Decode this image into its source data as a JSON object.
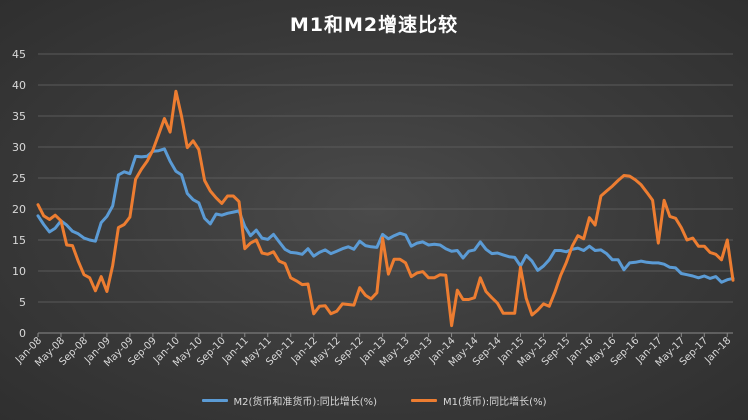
{
  "chart_data": {
    "type": "line",
    "title": "M1和M2增速比较",
    "xlabel": "",
    "ylabel": "",
    "ylim": [
      0,
      45
    ],
    "yticks": [
      "0",
      "5",
      "10",
      "15",
      "20",
      "25",
      "30",
      "35",
      "40",
      "45"
    ],
    "grid": true,
    "legend_position": "bottom",
    "x": [
      "Jan-08",
      "Feb-08",
      "Mar-08",
      "Apr-08",
      "May-08",
      "Jun-08",
      "Jul-08",
      "Aug-08",
      "Sep-08",
      "Oct-08",
      "Nov-08",
      "Dec-08",
      "Jan-09",
      "Feb-09",
      "Mar-09",
      "Apr-09",
      "May-09",
      "Jun-09",
      "Jul-09",
      "Aug-09",
      "Sep-09",
      "Oct-09",
      "Nov-09",
      "Dec-09",
      "Jan-10",
      "Feb-10",
      "Mar-10",
      "Apr-10",
      "May-10",
      "Jun-10",
      "Jul-10",
      "Aug-10",
      "Sep-10",
      "Oct-10",
      "Nov-10",
      "Dec-10",
      "Jan-11",
      "Feb-11",
      "Mar-11",
      "Apr-11",
      "May-11",
      "Jun-11",
      "Jul-11",
      "Aug-11",
      "Sep-11",
      "Oct-11",
      "Nov-11",
      "Dec-11",
      "Jan-12",
      "Feb-12",
      "Mar-12",
      "Apr-12",
      "May-12",
      "Jun-12",
      "Jul-12",
      "Aug-12",
      "Sep-12",
      "Oct-12",
      "Nov-12",
      "Dec-12",
      "Jan-13",
      "Feb-13",
      "Mar-13",
      "Apr-13",
      "May-13",
      "Jun-13",
      "Jul-13",
      "Aug-13",
      "Sep-13",
      "Oct-13",
      "Nov-13",
      "Dec-13",
      "Jan-14",
      "Feb-14",
      "Mar-14",
      "Apr-14",
      "May-14",
      "Jun-14",
      "Jul-14",
      "Aug-14",
      "Sep-14",
      "Oct-14",
      "Nov-14",
      "Dec-14",
      "Jan-15",
      "Feb-15",
      "Mar-15",
      "Apr-15",
      "May-15",
      "Jun-15",
      "Jul-15",
      "Aug-15",
      "Sep-15",
      "Oct-15",
      "Nov-15",
      "Dec-15",
      "Jan-16",
      "Feb-16",
      "Mar-16",
      "Apr-16",
      "May-16",
      "Jun-16",
      "Jul-16",
      "Aug-16",
      "Sep-16",
      "Oct-16",
      "Nov-16",
      "Dec-16",
      "Jan-17",
      "Feb-17",
      "Mar-17",
      "Apr-17",
      "May-17",
      "Jun-17",
      "Jul-17",
      "Aug-17",
      "Sep-17",
      "Oct-17",
      "Nov-17",
      "Dec-17",
      "Jan-18",
      "Feb-18"
    ],
    "tick_labels": [
      "Jan-08",
      "May-08",
      "Sep-08",
      "Jan-09",
      "May-09",
      "Sep-09",
      "Jan-10",
      "May-10",
      "Sep-10",
      "Jan-11",
      "May-11",
      "Sep-11",
      "Jan-12",
      "May-12",
      "Sep-12",
      "Jan-13",
      "May-13",
      "Sep-13",
      "Jan-14",
      "May-14",
      "Sep-14",
      "Jan-15",
      "May-15",
      "Sep-15",
      "Jan-16",
      "May-16",
      "Sep-16",
      "Jan-17",
      "May-17",
      "Sep-17",
      "Jan-18"
    ],
    "series": [
      {
        "name": "M2(货币和准货币):同比增长(%)",
        "color": "#5b9bd5",
        "values": [
          18.9,
          17.5,
          16.3,
          16.9,
          18.1,
          17.4,
          16.4,
          16.0,
          15.3,
          15.0,
          14.8,
          17.8,
          18.8,
          20.5,
          25.5,
          26.0,
          25.7,
          28.5,
          28.4,
          28.5,
          29.3,
          29.4,
          29.7,
          27.7,
          26.1,
          25.5,
          22.5,
          21.5,
          21.0,
          18.5,
          17.6,
          19.2,
          19.0,
          19.3,
          19.5,
          19.7,
          17.2,
          15.7,
          16.6,
          15.3,
          15.1,
          15.9,
          14.7,
          13.5,
          13.0,
          12.9,
          12.7,
          13.6,
          12.4,
          13.0,
          13.4,
          12.8,
          13.2,
          13.6,
          13.9,
          13.5,
          14.8,
          14.1,
          13.9,
          13.8,
          15.9,
          15.2,
          15.7,
          16.1,
          15.8,
          14.0,
          14.5,
          14.7,
          14.2,
          14.3,
          14.2,
          13.6,
          13.2,
          13.3,
          12.1,
          13.2,
          13.4,
          14.7,
          13.5,
          12.8,
          12.9,
          12.6,
          12.3,
          12.2,
          10.8,
          12.5,
          11.6,
          10.1,
          10.8,
          11.8,
          13.3,
          13.3,
          13.1,
          13.5,
          13.7,
          13.3,
          14.0,
          13.3,
          13.4,
          12.8,
          11.8,
          11.8,
          10.2,
          11.3,
          11.4,
          11.6,
          11.4,
          11.3,
          11.3,
          11.1,
          10.6,
          10.5,
          9.6,
          9.4,
          9.2,
          8.9,
          9.2,
          8.8,
          9.1,
          8.2,
          8.6,
          8.8
        ]
      },
      {
        "name": "M1(货币):同比增长(%)",
        "color": "#ed7d31",
        "values": [
          20.7,
          18.9,
          18.3,
          19.0,
          18.1,
          14.2,
          14.1,
          11.6,
          9.4,
          8.9,
          6.8,
          9.1,
          6.7,
          10.9,
          17.0,
          17.5,
          18.7,
          24.8,
          26.4,
          27.7,
          29.5,
          32.0,
          34.6,
          32.4,
          39.0,
          34.9,
          29.9,
          31.0,
          29.6,
          24.6,
          22.9,
          21.8,
          20.9,
          22.1,
          22.1,
          21.2,
          13.6,
          14.5,
          15.0,
          12.9,
          12.7,
          13.1,
          11.6,
          11.2,
          8.9,
          8.4,
          7.8,
          7.9,
          3.1,
          4.3,
          4.4,
          3.1,
          3.5,
          4.7,
          4.6,
          4.5,
          7.3,
          6.1,
          5.5,
          6.5,
          15.3,
          9.5,
          11.9,
          11.9,
          11.3,
          9.1,
          9.7,
          9.9,
          8.9,
          8.9,
          9.4,
          9.3,
          1.2,
          6.9,
          5.4,
          5.4,
          5.7,
          8.9,
          6.7,
          5.7,
          4.8,
          3.2,
          3.2,
          3.2,
          10.6,
          5.6,
          2.9,
          3.7,
          4.7,
          4.3,
          6.6,
          9.3,
          11.4,
          14.0,
          15.7,
          15.2,
          18.6,
          17.4,
          22.1,
          22.9,
          23.7,
          24.6,
          25.4,
          25.3,
          24.7,
          23.9,
          22.7,
          21.4,
          14.5,
          21.4,
          18.8,
          18.5,
          17.0,
          15.0,
          15.3,
          14.0,
          14.0,
          13.0,
          12.7,
          11.8,
          15.0,
          8.5
        ]
      }
    ]
  }
}
